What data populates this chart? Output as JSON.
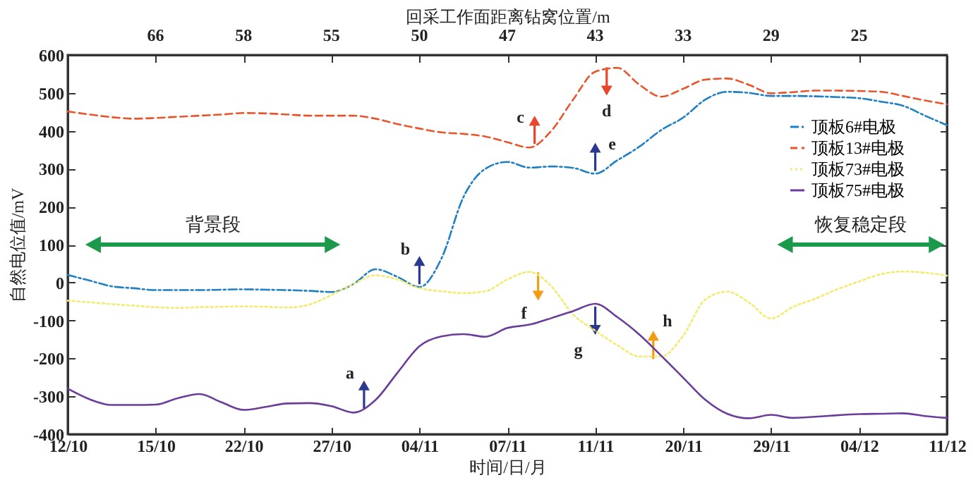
{
  "chart_data": {
    "type": "line",
    "xlabel": "时间/日/月",
    "ylabel": "自然电位值/mV",
    "x2label": "回采工作面距离钻窝位置/m",
    "categories": [
      "12/10",
      null,
      null,
      null,
      "15/10",
      null,
      null,
      null,
      "22/10",
      null,
      null,
      null,
      "27/10",
      null,
      null,
      null,
      "04/11",
      null,
      null,
      null,
      "07/11",
      null,
      null,
      null,
      "11/11",
      null,
      null,
      null,
      "20/11",
      null,
      null,
      null,
      "29/11",
      null,
      null,
      null,
      "04/12",
      null,
      null,
      null,
      "11/12"
    ],
    "ylim": [
      -400,
      600
    ],
    "yticks": [
      -400,
      -300,
      -200,
      -100,
      0,
      100,
      200,
      300,
      400,
      500,
      600
    ],
    "legend": "right",
    "series": [
      {
        "name": "顶板6#电极",
        "color": "#1f7fc4",
        "line_style": "dashdot",
        "values": [
          20,
          5,
          -10,
          -15,
          -20,
          -20,
          -20,
          -19,
          -18,
          -19,
          -20,
          -22,
          -25,
          -4,
          35,
          15,
          -12,
          63,
          225,
          300,
          318,
          303,
          306,
          302,
          287,
          322,
          358,
          402,
          435,
          482,
          503,
          500,
          492,
          492,
          491,
          489,
          486,
          477,
          466,
          440,
          415
        ]
      },
      {
        "name": "顶板13#电极",
        "color": "#e8552a",
        "line_style": "dashed",
        "values": [
          451,
          443,
          436,
          432,
          434,
          437,
          440,
          443,
          447,
          446,
          443,
          440,
          440,
          440,
          432,
          418,
          406,
          396,
          392,
          385,
          370,
          356,
          400,
          483,
          556,
          566,
          522,
          490,
          511,
          535,
          538,
          521,
          499,
          502,
          506,
          506,
          505,
          503,
          492,
          480,
          470
        ]
      },
      {
        "name": "顶板73#电极",
        "color": "#f3ea6e",
        "line_style": "dotted",
        "values": [
          -48,
          -52,
          -57,
          -61,
          -65,
          -67,
          -65,
          -64,
          -63,
          -64,
          -66,
          -58,
          -33,
          -4,
          19,
          8,
          -15,
          -23,
          -28,
          -23,
          8,
          28,
          -10,
          -85,
          -127,
          -165,
          -195,
          -195,
          -140,
          -45,
          -24,
          -53,
          -95,
          -64,
          -43,
          -18,
          3,
          22,
          29,
          26,
          18
        ]
      },
      {
        "name": "顶板75#电极",
        "color": "#6a3d9a",
        "line_style": "solid",
        "values": [
          -280,
          -308,
          -323,
          -323,
          -322,
          -305,
          -294,
          -316,
          -336,
          -328,
          -319,
          -318,
          -326,
          -343,
          -310,
          -238,
          -168,
          -142,
          -136,
          -143,
          -120,
          -111,
          -94,
          -75,
          -56,
          -91,
          -137,
          -193,
          -251,
          -309,
          -346,
          -358,
          -349,
          -357,
          -354,
          -350,
          -347,
          -346,
          -345,
          -352,
          -357
        ]
      }
    ],
    "annotations": [
      "66",
      "58",
      "55",
      "50",
      "47",
      "43",
      "33",
      "29",
      "25",
      "背景段",
      "恢复稳定段",
      "a",
      "b",
      "c",
      "d",
      "e",
      "f",
      "g",
      "h"
    ]
  }
}
